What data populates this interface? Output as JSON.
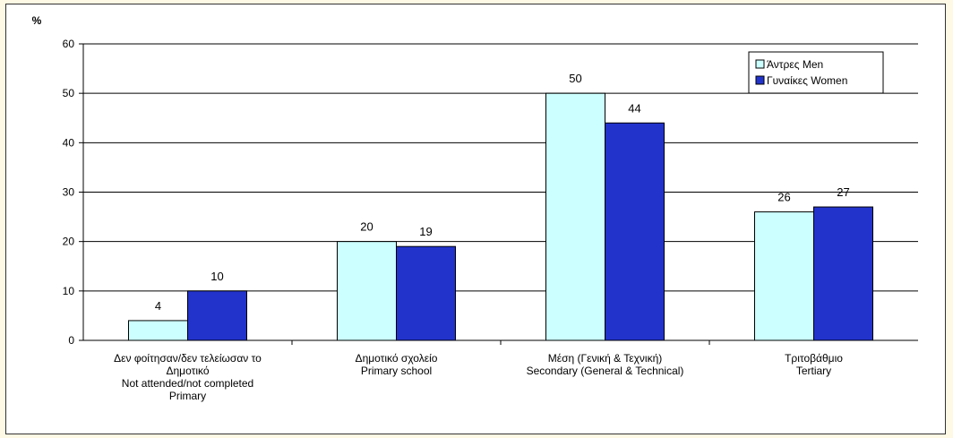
{
  "chart_data": {
    "type": "bar",
    "ylabel": "%",
    "ylim": [
      0,
      60
    ],
    "yticks": [
      0,
      10,
      20,
      30,
      40,
      50,
      60
    ],
    "grid": true,
    "legend_position": "top-right",
    "categories": [
      [
        "Δεν φοίτησαν/δεν τελείωσαν το",
        "Δημοτικό",
        "Not attended/not completed",
        "Primary"
      ],
      [
        "Δημοτικό σχολείο",
        "Primary school"
      ],
      [
        "Μέση (Γενική & Τεχνική)",
        "Secondary (General & Technical)"
      ],
      [
        "Τριτοβάθμιο",
        "Tertiary"
      ]
    ],
    "series": [
      {
        "name": "Άντρες Men",
        "color": "#ccffff",
        "values": [
          4,
          20,
          50,
          26
        ]
      },
      {
        "name": "Γυναίκες Women",
        "color": "#2233cc",
        "values": [
          10,
          19,
          44,
          27
        ]
      }
    ]
  }
}
